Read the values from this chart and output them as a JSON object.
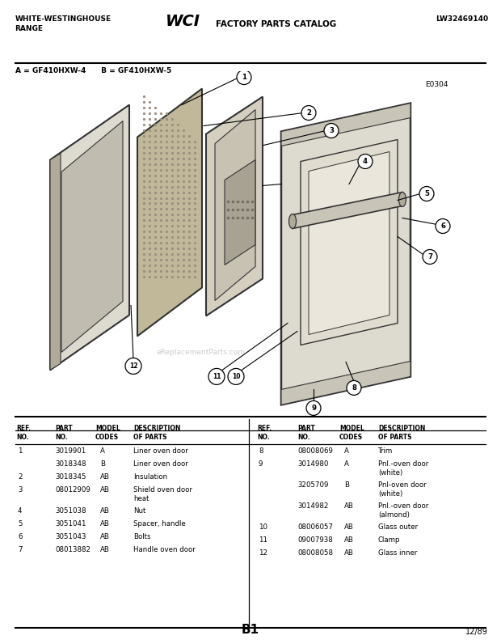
{
  "title_left": "WHITE-WESTINGHOUSE\nRANGE",
  "title_right": "LW32469140",
  "model_line": "A = GF410HXW-4      B = GF410HXW-5",
  "diagram_code": "E0304",
  "page_code": "B1",
  "date": "12/89",
  "table_headers_left": [
    "REF.\nNO.",
    "PART\nNO.",
    "MODEL\nCODES",
    "DESCRIPTION\nOF PARTS"
  ],
  "table_headers_right": [
    "REF.\nNO.",
    "PART\nNO.",
    "MODEL\nCODES",
    "DESCRIPTION\nOF PARTS"
  ],
  "parts_left": [
    [
      "1",
      "3019901",
      "A",
      "Liner oven door"
    ],
    [
      "",
      "3018348",
      "B",
      "Liner oven door"
    ],
    [
      "2",
      "3018345",
      "AB",
      "Insulation"
    ],
    [
      "3",
      "08012909",
      "AB",
      "Shield oven door\nheat"
    ],
    [
      "4",
      "3051038",
      "AB",
      "Nut"
    ],
    [
      "5",
      "3051041",
      "AB",
      "Spacer, handle"
    ],
    [
      "6",
      "3051043",
      "AB",
      "Bolts"
    ],
    [
      "7",
      "08013882",
      "AB",
      "Handle oven door"
    ]
  ],
  "parts_right": [
    [
      "8",
      "08008069",
      "A",
      "Trim"
    ],
    [
      "9",
      "3014980",
      "A",
      "Pnl.-oven door\n(white)"
    ],
    [
      "",
      "3205709",
      "B",
      "Pnl-oven door\n(white)"
    ],
    [
      "",
      "3014982",
      "AB",
      "Pnl.-oven door\n(almond)"
    ],
    [
      "10",
      "08006057",
      "AB",
      "Glass outer"
    ],
    [
      "11",
      "09007938",
      "AB",
      "Clamp"
    ],
    [
      "12",
      "08008058",
      "AB",
      "Glass inner"
    ]
  ],
  "c_outline": "#333333",
  "c_light": "#dddad0",
  "c_mid": "#c8c4b8",
  "c_dark": "#b0aa9a",
  "c_ins": "#c0b898",
  "c_instext": "#9a9080"
}
